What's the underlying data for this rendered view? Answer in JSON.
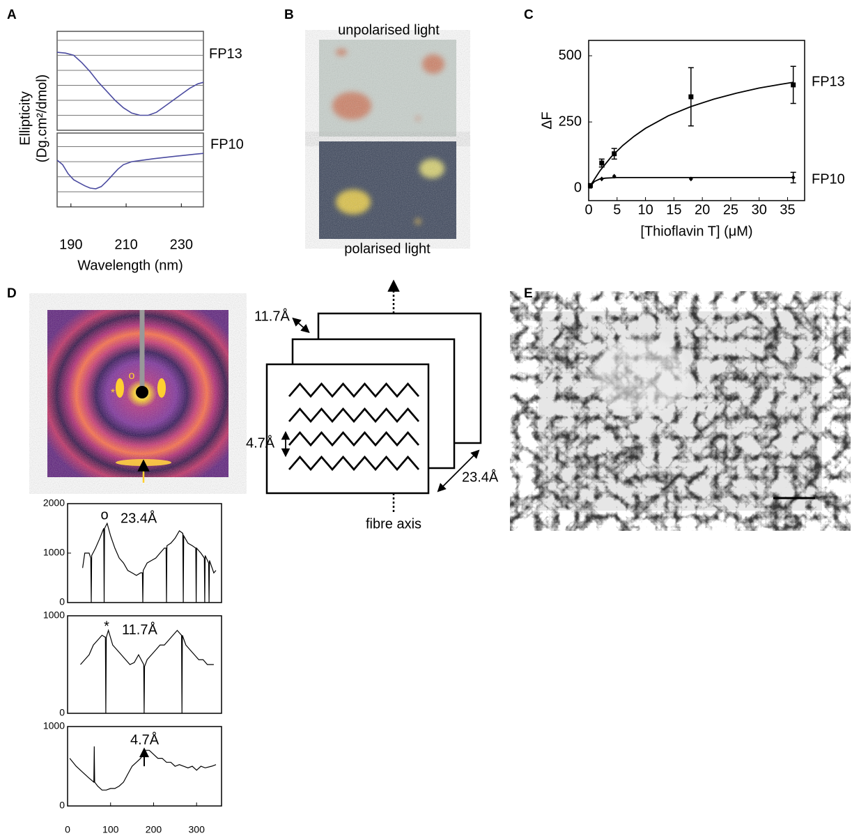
{
  "panel_labels": [
    "A",
    "B",
    "C",
    "D",
    "E"
  ],
  "chart_data": [
    {
      "type": "line",
      "ylabel": [
        "Ellipticity",
        "(Dg.cm²/dmol)"
      ],
      "xlim": [
        185,
        238
      ],
      "ylim": [
        0,
        6.6
      ],
      "series": [
        {
          "name": "FP13",
          "color": "#4b4ba0",
          "x": [
            185,
            188,
            191,
            194,
            197,
            200,
            203,
            206,
            209,
            212,
            215,
            218,
            221,
            224,
            227,
            230,
            233,
            236,
            238
          ],
          "values": [
            5.2,
            5.15,
            5.0,
            4.5,
            3.9,
            3.2,
            2.6,
            2.0,
            1.5,
            1.15,
            1.0,
            1.0,
            1.2,
            1.6,
            2.0,
            2.4,
            2.8,
            3.1,
            3.2
          ]
        }
      ]
    },
    {
      "type": "line",
      "xlabel": "Wavelength (nm)",
      "xlim": [
        185,
        238
      ],
      "ylim": [
        0,
        4.9
      ],
      "xticks": [
        190,
        210,
        230
      ],
      "series": [
        {
          "name": "FP10",
          "color": "#4b4ba0",
          "x": [
            185,
            187,
            189,
            191,
            193,
            195,
            197,
            199,
            201,
            203,
            205,
            207,
            209,
            212,
            216,
            220,
            225,
            230,
            235,
            238
          ],
          "values": [
            3.1,
            2.8,
            2.2,
            1.8,
            1.6,
            1.4,
            1.25,
            1.2,
            1.35,
            1.7,
            2.1,
            2.5,
            2.8,
            3.0,
            3.1,
            3.2,
            3.3,
            3.4,
            3.5,
            3.55
          ]
        }
      ]
    },
    {
      "type": "scatter",
      "xlabel": "[Thioflavin T] (μM)",
      "ylabel": "ΔF",
      "xlim": [
        0,
        38
      ],
      "ylim": [
        -47,
        558
      ],
      "xticks": [
        0,
        5,
        10,
        15,
        20,
        25,
        30,
        35
      ],
      "yticks": [
        0,
        250,
        500
      ],
      "series": [
        {
          "name": "FP13",
          "color": "#000000",
          "marker": "square",
          "x": [
            0.3,
            2.3,
            4.5,
            18,
            36
          ],
          "values": [
            10,
            95,
            130,
            345,
            390
          ],
          "errors": [
            null,
            15,
            20,
            110,
            70
          ],
          "fit": {
            "x": [
              0,
              2,
              4,
              6,
              8,
              10,
              14,
              18,
              22,
              26,
              30,
              34,
              36
            ],
            "values": [
              0,
              66,
              119,
              161,
              196,
              226,
              273,
              308,
              336,
              359,
              378,
              393,
              400
            ]
          }
        },
        {
          "name": "FP10",
          "color": "#000000",
          "marker": "diamond",
          "x": [
            0.3,
            2.3,
            4.5,
            18,
            36
          ],
          "values": [
            8,
            35,
            45,
            35,
            40
          ],
          "errors": [
            null,
            null,
            null,
            null,
            20
          ],
          "fit": {
            "x": [
              0,
              1,
              2,
              3,
              5,
              10,
              20,
              36
            ],
            "values": [
              0,
              25,
              35,
              38,
              40,
              40,
              40,
              40
            ]
          }
        }
      ]
    },
    {
      "type": "line",
      "xlim": [
        0,
        358
      ],
      "ylim": [
        0,
        2000
      ],
      "yticks": [
        0,
        1000,
        2000
      ],
      "annotations": [
        "o",
        "23.4Å"
      ],
      "series": [
        {
          "color": "#000000",
          "x": [
            35,
            40,
            50,
            54,
            55,
            56,
            65,
            75,
            84,
            85,
            86,
            92,
            100,
            110,
            120,
            130,
            140,
            150,
            160,
            170,
            174,
            175,
            176,
            185,
            195,
            205,
            215,
            225,
            229,
            230,
            231,
            240,
            250,
            260,
            268,
            269,
            270,
            280,
            290,
            298,
            299,
            300,
            310,
            318,
            319,
            320,
            328,
            329,
            330,
            340,
            345
          ],
          "values": [
            700,
            1000,
            1000,
            900,
            0,
            950,
            1100,
            1300,
            1500,
            0,
            1500,
            1600,
            1350,
            1100,
            900,
            800,
            650,
            600,
            550,
            600,
            600,
            0,
            650,
            800,
            850,
            900,
            1000,
            1100,
            1100,
            0,
            1150,
            1200,
            1300,
            1450,
            1400,
            0,
            1350,
            1200,
            1150,
            1100,
            0,
            1100,
            1000,
            900,
            0,
            950,
            800,
            0,
            850,
            600,
            650
          ]
        }
      ]
    },
    {
      "type": "line",
      "xlim": [
        0,
        358
      ],
      "ylim": [
        0,
        1000
      ],
      "yticks": [
        0,
        1000
      ],
      "annotations": [
        "*",
        "11.7Å"
      ],
      "series": [
        {
          "color": "#000000",
          "x": [
            30,
            40,
            50,
            60,
            70,
            80,
            88,
            89,
            90,
            95,
            105,
            115,
            125,
            135,
            145,
            155,
            165,
            177,
            178,
            179,
            185,
            195,
            205,
            215,
            225,
            235,
            245,
            255,
            265,
            266,
            267,
            275,
            285,
            295,
            305,
            315,
            325,
            340
          ],
          "values": [
            500,
            550,
            600,
            700,
            750,
            800,
            780,
            0,
            780,
            850,
            700,
            650,
            600,
            550,
            500,
            520,
            600,
            500,
            0,
            480,
            550,
            600,
            650,
            700,
            700,
            750,
            800,
            850,
            800,
            0,
            800,
            700,
            650,
            600,
            550,
            550,
            500,
            500
          ]
        }
      ]
    },
    {
      "type": "line",
      "xlim": [
        0,
        358
      ],
      "ylim": [
        0,
        1000
      ],
      "yticks": [
        0,
        1000
      ],
      "xticks": [
        0,
        100,
        200,
        300
      ],
      "annotations": [
        "4.7Å"
      ],
      "series": [
        {
          "color": "#000000",
          "x": [
            5,
            20,
            30,
            40,
            50,
            61,
            62,
            63,
            70,
            80,
            90,
            100,
            110,
            120,
            130,
            140,
            150,
            160,
            170,
            180,
            190,
            200,
            210,
            220,
            230,
            240,
            250,
            260,
            270,
            280,
            290,
            300,
            310,
            320,
            335,
            345
          ],
          "values": [
            600,
            500,
            450,
            400,
            350,
            300,
            750,
            300,
            250,
            200,
            200,
            220,
            220,
            250,
            300,
            400,
            500,
            550,
            600,
            700,
            700,
            650,
            600,
            600,
            550,
            550,
            500,
            520,
            500,
            480,
            500,
            450,
            500,
            480,
            500,
            520
          ]
        }
      ]
    }
  ],
  "panel_b": {
    "top_caption": "unpolarised light",
    "bottom_caption": "polarised light"
  },
  "panel_d": {
    "image_marks": [
      "o",
      "*"
    ],
    "diagram": {
      "sheet_spacing": "11.7Å",
      "strand_spacing": "4.7Å",
      "sheet_depth": "23.4Å",
      "axis_label": "fibre axis"
    }
  }
}
